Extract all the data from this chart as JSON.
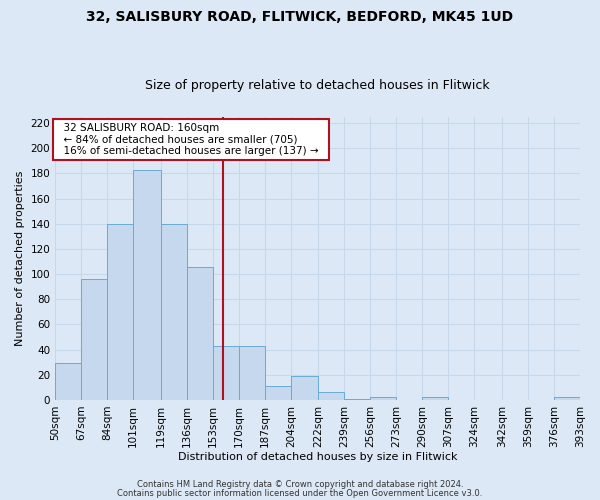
{
  "title": "32, SALISBURY ROAD, FLITWICK, BEDFORD, MK45 1UD",
  "subtitle": "Size of property relative to detached houses in Flitwick",
  "xlabel": "Distribution of detached houses by size in Flitwick",
  "ylabel": "Number of detached properties",
  "footer1": "Contains HM Land Registry data © Crown copyright and database right 2024.",
  "footer2": "Contains public sector information licensed under the Open Government Licence v3.0.",
  "bin_edges": [
    50,
    67,
    84,
    101,
    119,
    136,
    153,
    170,
    187,
    204,
    222,
    239,
    256,
    273,
    290,
    307,
    324,
    342,
    359,
    376,
    393
  ],
  "bin_labels": [
    "50sqm",
    "67sqm",
    "84sqm",
    "101sqm",
    "119sqm",
    "136sqm",
    "153sqm",
    "170sqm",
    "187sqm",
    "204sqm",
    "222sqm",
    "239sqm",
    "256sqm",
    "273sqm",
    "290sqm",
    "307sqm",
    "324sqm",
    "342sqm",
    "359sqm",
    "376sqm",
    "393sqm"
  ],
  "counts": [
    29,
    96,
    140,
    183,
    140,
    106,
    43,
    43,
    11,
    19,
    6,
    1,
    2,
    0,
    2,
    0,
    0,
    0,
    0,
    2
  ],
  "bar_color": "#c5d8ee",
  "bar_edge_color": "#6aaad4",
  "vline_x": 160,
  "vline_color": "#b01020",
  "annotation_title": "32 SALISBURY ROAD: 160sqm",
  "annotation_line1": "← 84% of detached houses are smaller (705)",
  "annotation_line2": "16% of semi-detached houses are larger (137) →",
  "annotation_box_color": "#ffffff",
  "annotation_box_edge": "#b01020",
  "ylim": [
    0,
    225
  ],
  "yticks": [
    0,
    20,
    40,
    60,
    80,
    100,
    120,
    140,
    160,
    180,
    200,
    220
  ],
  "grid_color": "#c8d8eb",
  "background_color": "#dce8f5",
  "plot_bg_color": "#dce8f5",
  "title_fontsize": 10,
  "subtitle_fontsize": 9,
  "axis_label_fontsize": 8,
  "tick_fontsize": 7.5,
  "footer_fontsize": 6
}
